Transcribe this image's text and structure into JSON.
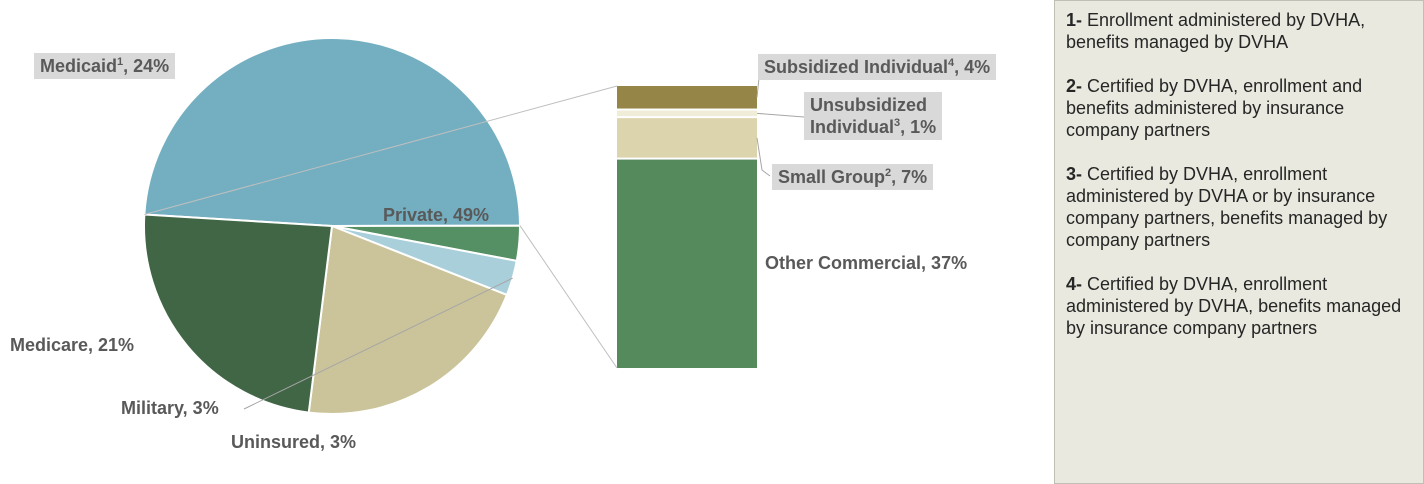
{
  "chart_data": {
    "type": "pie",
    "title": "",
    "pie": {
      "slices": [
        {
          "name": "Private",
          "label": "Private, 49%",
          "value": 49,
          "color": "#73afc1"
        },
        {
          "name": "Uninsured",
          "label": "Uninsured, 3%",
          "value": 3,
          "color": "#549063"
        },
        {
          "name": "Military",
          "label": "Military, 3%",
          "value": 3,
          "color": "#a9cfda"
        },
        {
          "name": "Medicare",
          "label": "Medicare, 21%",
          "value": 21,
          "color": "#cbc49a"
        },
        {
          "name": "Medicaid",
          "label": "Medicaid",
          "sup": "1",
          "pct": ", 24%",
          "value": 24,
          "color": "#416645"
        }
      ]
    },
    "breakdown_of": "Private",
    "bar": {
      "segments": [
        {
          "name": "Subsidized Individual",
          "label": "Subsidized Individual",
          "sup": "4",
          "pct": ", 4%",
          "value": 4,
          "color": "#958547"
        },
        {
          "name": "Unsubsidized Individual",
          "label_line1": "Unsubsidized",
          "label_line2": "Individual",
          "sup": "3",
          "pct": ", 1%",
          "value": 1,
          "color": "#efecd8"
        },
        {
          "name": "Small Group",
          "label": "Small Group",
          "sup": "2",
          "pct": ", 7%",
          "value": 7,
          "color": "#dcd4ac"
        },
        {
          "name": "Other Commercial",
          "label": "Other Commercial, 37%",
          "value": 37,
          "color": "#558a5d"
        }
      ]
    },
    "legend": "none"
  },
  "notes": [
    {
      "num": "1-",
      "text": " Enrollment administered by DVHA, benefits managed by DVHA"
    },
    {
      "num": "2-",
      "text": " Certified by DVHA, enrollment and benefits administered by insurance company partners"
    },
    {
      "num": "3-",
      "text": " Certified by DVHA, enrollment administered by DVHA or by insurance company partners, benefits managed by company partners"
    },
    {
      "num": "4-",
      "text": " Certified by DVHA, enrollment administered by DVHA, benefits managed by insurance company partners"
    }
  ]
}
